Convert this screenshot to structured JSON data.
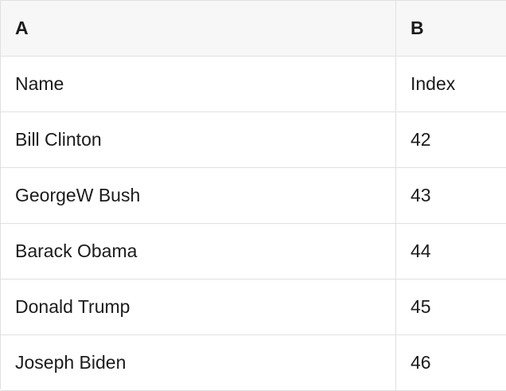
{
  "table": {
    "columns": [
      {
        "label": "A"
      },
      {
        "label": "B"
      }
    ],
    "rows": [
      [
        "Name",
        "Index"
      ],
      [
        "Bill Clinton",
        "42"
      ],
      [
        "GeorgeW Bush",
        "43"
      ],
      [
        "Barack Obama",
        "44"
      ],
      [
        "Donald Trump",
        "45"
      ],
      [
        "Joseph Biden",
        "46"
      ]
    ]
  },
  "colors": {
    "header_bg": "#f7f7f7",
    "row_bg": "#ffffff",
    "border": "#e0e0e0",
    "text": "#1b1b1b"
  }
}
